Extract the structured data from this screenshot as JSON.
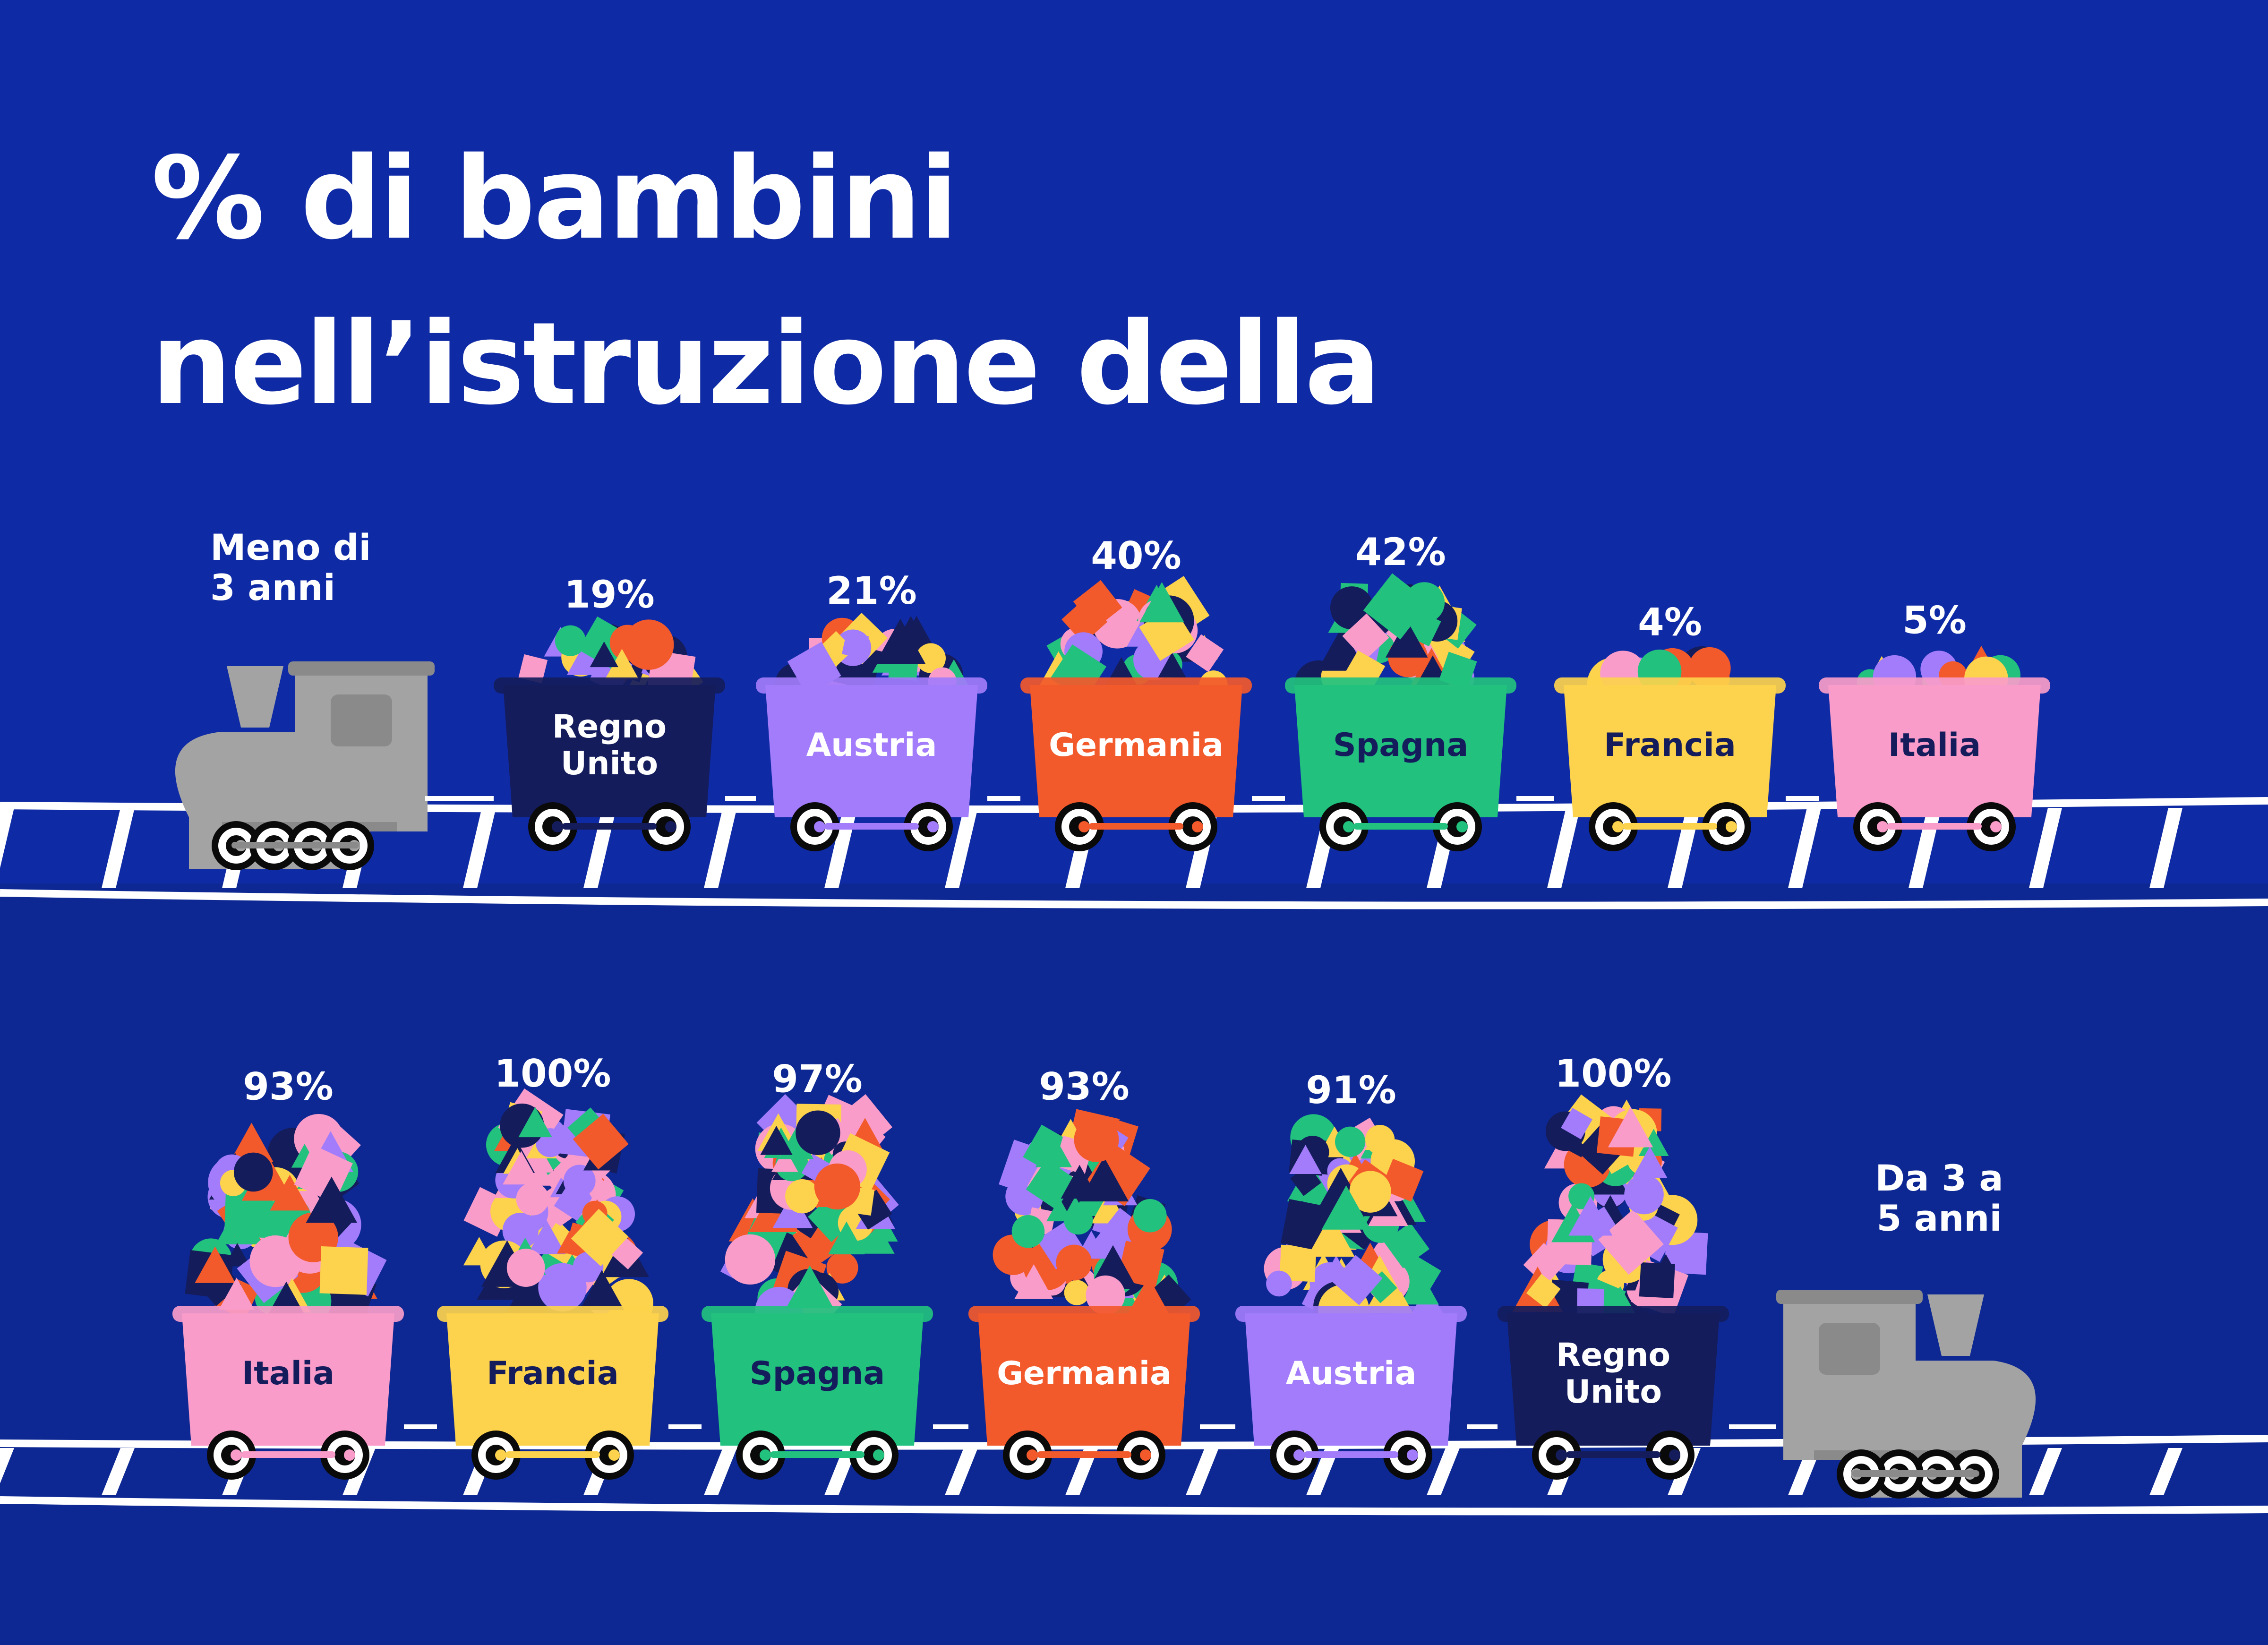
{
  "colors": {
    "background": "#0f2aa5",
    "band_lower": "#0d2893",
    "track": "#ffffff",
    "locomotive": "#a3a3a3",
    "locomotive_dark": "#8a8a8a",
    "wheel": "#ffffff",
    "wheel_ring": "#0a0a0a"
  },
  "title": {
    "line1": "% di bambini",
    "line2": "nell’istruzione della"
  },
  "chart_data": [
    {
      "type": "bar",
      "group_label": [
        "Meno di",
        "3 anni"
      ],
      "categories": [
        "Regno Unito",
        "Austria",
        "Germania",
        "Spagna",
        "Francia",
        "Italia"
      ],
      "values": [
        19,
        21,
        40,
        42,
        4,
        5
      ],
      "value_labels": [
        "19%",
        "21%",
        "40%",
        "42%",
        "4%",
        "5%"
      ],
      "ylim": [
        0,
        100
      ]
    },
    {
      "type": "bar",
      "group_label": [
        "Da 3 a",
        "5 anni"
      ],
      "categories": [
        "Italia",
        "Francia",
        "Spagna",
        "Germania",
        "Austria",
        "Regno Unito"
      ],
      "values": [
        93,
        100,
        97,
        93,
        91,
        100
      ],
      "value_labels": [
        "93%",
        "100%",
        "97%",
        "93%",
        "91%",
        "100%"
      ],
      "ylim": [
        0,
        100
      ]
    }
  ],
  "country_colors": {
    "Regno Unito": "#141c5c",
    "Austria": "#a27cfa",
    "Germania": "#f2592b",
    "Spagna": "#22c17e",
    "Francia": "#fdd24c",
    "Italia": "#f99cc9"
  },
  "country_label_colors": {
    "Regno Unito": "#ffffff",
    "Austria": "#ffffff",
    "Germania": "#ffffff",
    "Spagna": "#141c5c",
    "Francia": "#141c5c",
    "Italia": "#141c5c"
  },
  "shape_palette": [
    "#f99cc9",
    "#a27cfa",
    "#fdd24c",
    "#22c17e",
    "#f2592b",
    "#141c5c"
  ]
}
